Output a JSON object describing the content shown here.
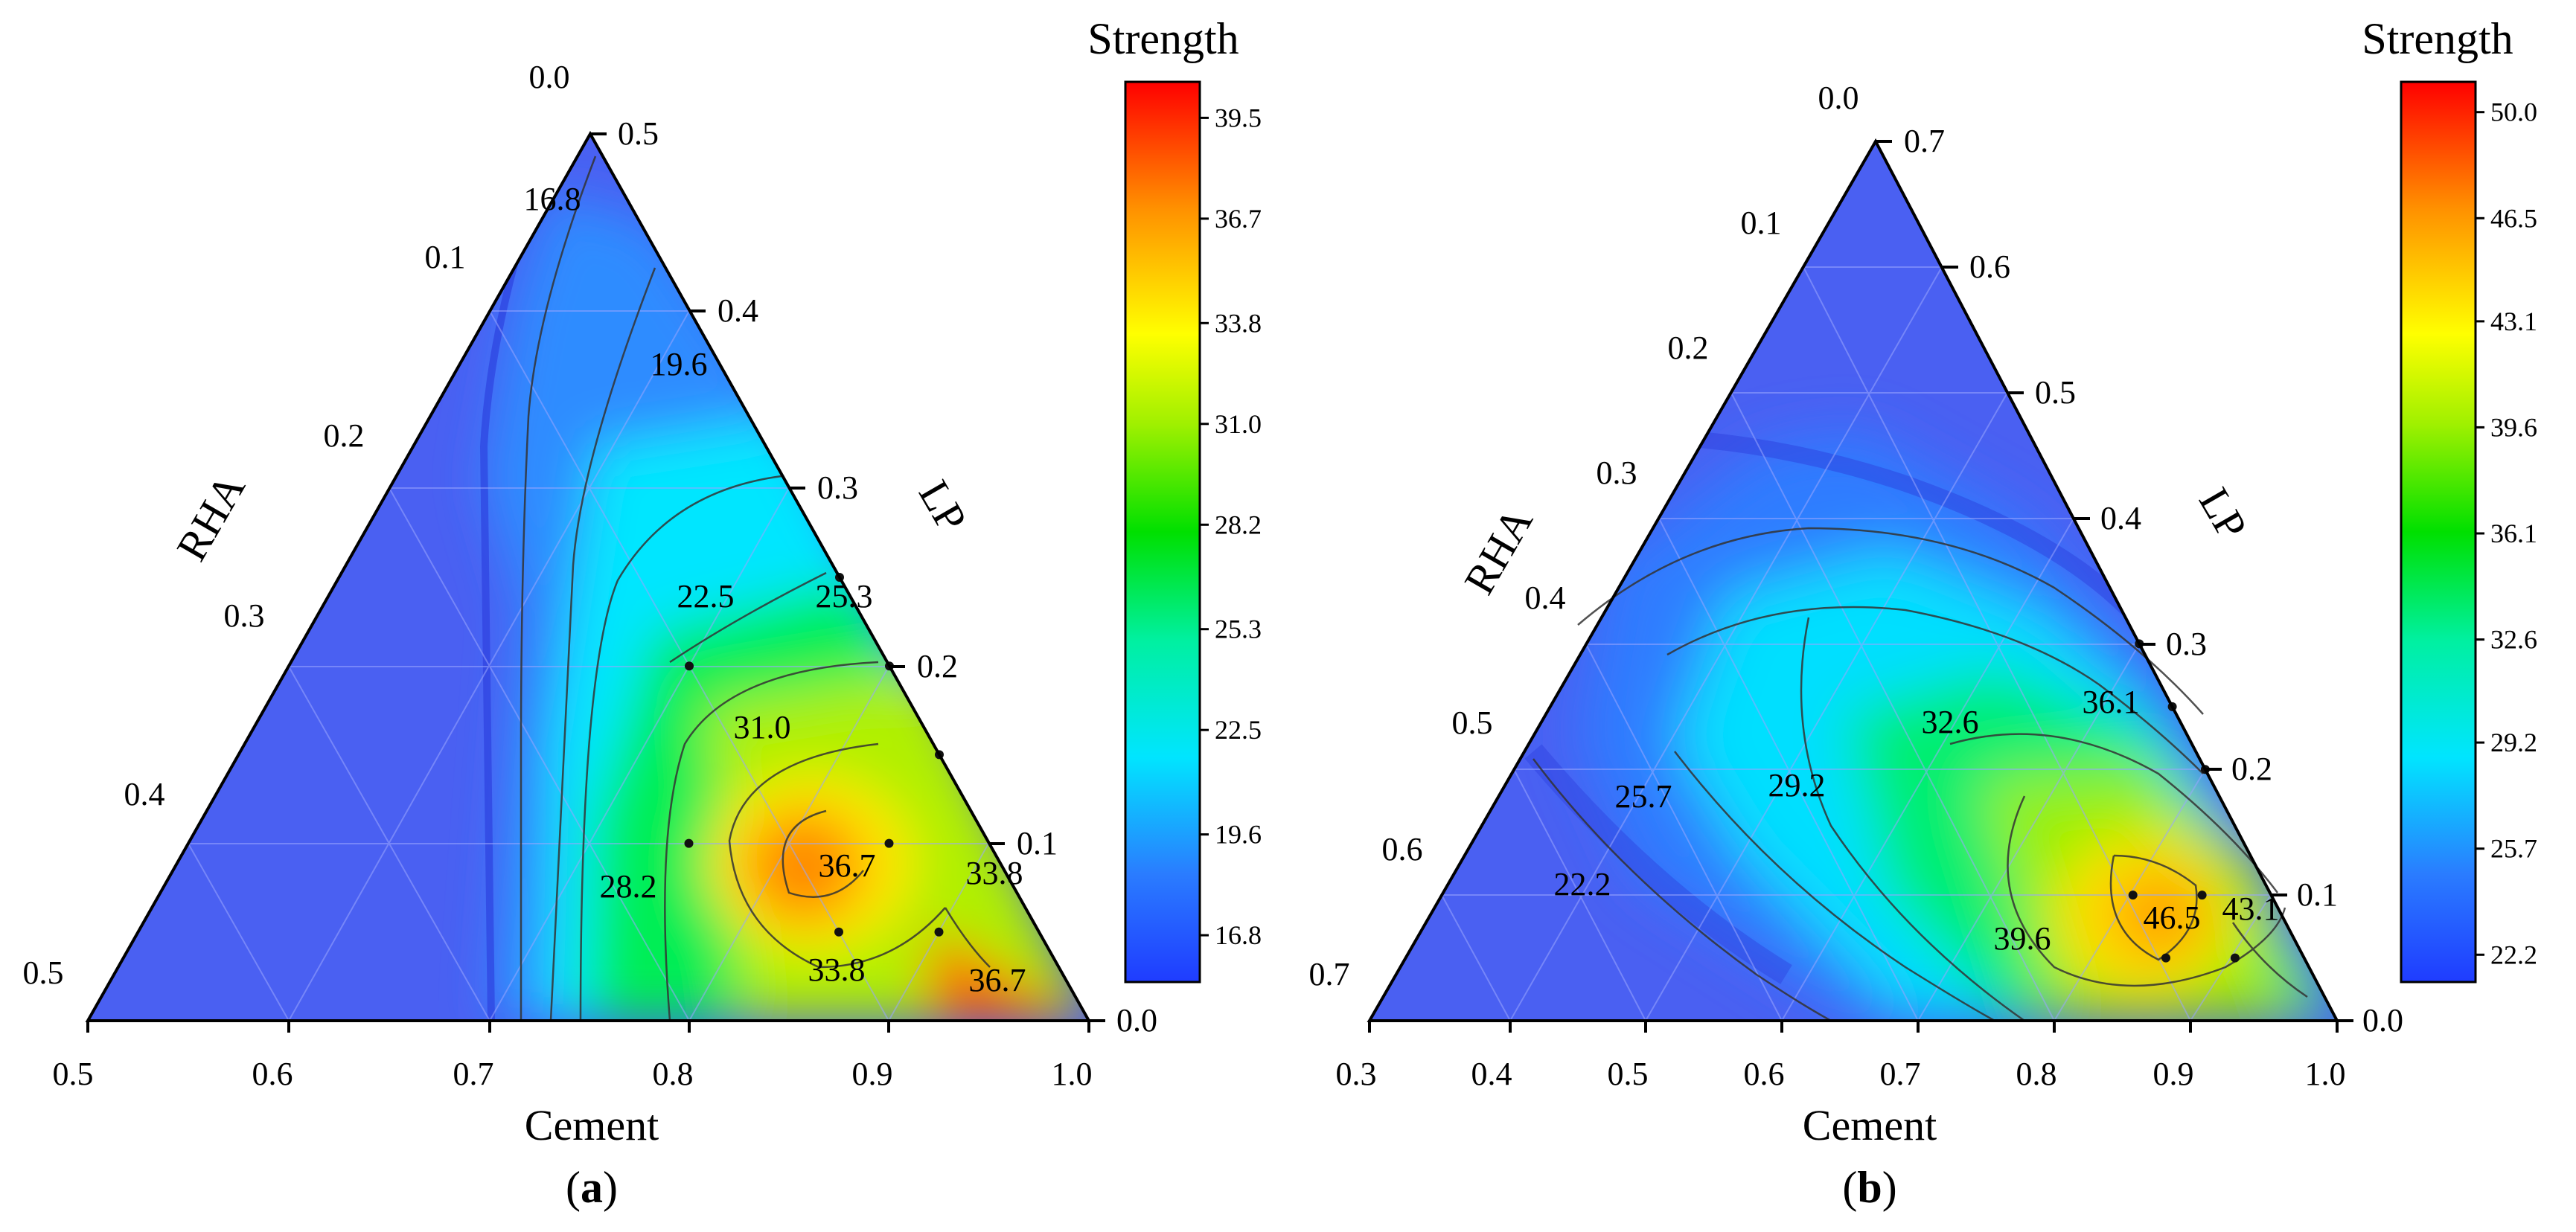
{
  "chart_data": [
    {
      "type": "ternary-contour",
      "panel_label": "a",
      "axes": {
        "bottom": {
          "title": "Cement",
          "ticks": [
            "0.5",
            "0.6",
            "0.7",
            "0.8",
            "0.9",
            "1.0"
          ],
          "range": [
            0.5,
            1.0
          ]
        },
        "left": {
          "title": "RHA",
          "ticks": [
            "0.0",
            "0.1",
            "0.2",
            "0.3",
            "0.4",
            "0.5"
          ],
          "range": [
            0.0,
            0.5
          ]
        },
        "right": {
          "title": "LP",
          "ticks": [
            "0.0",
            "0.1",
            "0.2",
            "0.3",
            "0.4",
            "0.5"
          ],
          "range": [
            0.0,
            0.5
          ]
        }
      },
      "colorbar": {
        "title": "Strength",
        "ticks": [
          "16.8",
          "19.6",
          "22.5",
          "25.3",
          "28.2",
          "31.0",
          "33.8",
          "36.7",
          "39.5"
        ],
        "min": 15.5,
        "max": 40.5
      },
      "contour_labels": [
        "16.8",
        "19.6",
        "22.5",
        "25.3",
        "31.0",
        "36.7",
        "33.8",
        "28.2",
        "33.8",
        "36.7"
      ],
      "design_points": [
        {
          "cement": 0.7,
          "rha": 0.1,
          "lp": 0.2
        },
        {
          "cement": 0.75,
          "rha": 0.0,
          "lp": 0.25
        },
        {
          "cement": 0.8,
          "rha": 0.0,
          "lp": 0.2
        },
        {
          "cement": 0.85,
          "rha": 0.0,
          "lp": 0.15
        },
        {
          "cement": 0.85,
          "rha": 0.05,
          "lp": 0.1
        },
        {
          "cement": 0.75,
          "rha": 0.15,
          "lp": 0.1
        },
        {
          "cement": 0.85,
          "rha": 0.1,
          "lp": 0.05
        },
        {
          "cement": 0.9,
          "rha": 0.05,
          "lp": 0.05
        }
      ]
    },
    {
      "type": "ternary-contour",
      "panel_label": "b",
      "axes": {
        "bottom": {
          "title": "Cement",
          "ticks": [
            "0.3",
            "0.4",
            "0.5",
            "0.6",
            "0.7",
            "0.8",
            "0.9",
            "1.0"
          ],
          "range": [
            0.3,
            1.0
          ]
        },
        "left": {
          "title": "RHA",
          "ticks": [
            "0.0",
            "0.1",
            "0.2",
            "0.3",
            "0.4",
            "0.5",
            "0.6",
            "0.7"
          ],
          "range": [
            0.0,
            0.7
          ]
        },
        "right": {
          "title": "LP",
          "ticks": [
            "0.0",
            "0.1",
            "0.2",
            "0.3",
            "0.4",
            "0.5",
            "0.6",
            "0.7"
          ],
          "range": [
            0.0,
            0.7
          ]
        }
      },
      "colorbar": {
        "title": "Strength",
        "ticks": [
          "22.2",
          "25.7",
          "29.2",
          "32.6",
          "36.1",
          "39.6",
          "43.1",
          "46.5",
          "50.0"
        ],
        "min": 21.3,
        "max": 51.0
      },
      "contour_labels": [
        "32.6",
        "36.1",
        "25.7",
        "29.2",
        "22.2",
        "39.6",
        "46.5",
        "43.1"
      ],
      "design_points": [
        {
          "cement": 0.7,
          "rha": 0.0,
          "lp": 0.3
        },
        {
          "cement": 0.75,
          "rha": 0.0,
          "lp": 0.25
        },
        {
          "cement": 0.8,
          "rha": 0.0,
          "lp": 0.2
        },
        {
          "cement": 0.85,
          "rha": 0.05,
          "lp": 0.1
        },
        {
          "cement": 0.8,
          "rha": 0.1,
          "lp": 0.1
        },
        {
          "cement": 0.85,
          "rha": 0.1,
          "lp": 0.05
        },
        {
          "cement": 0.9,
          "rha": 0.05,
          "lp": 0.05
        }
      ]
    }
  ]
}
